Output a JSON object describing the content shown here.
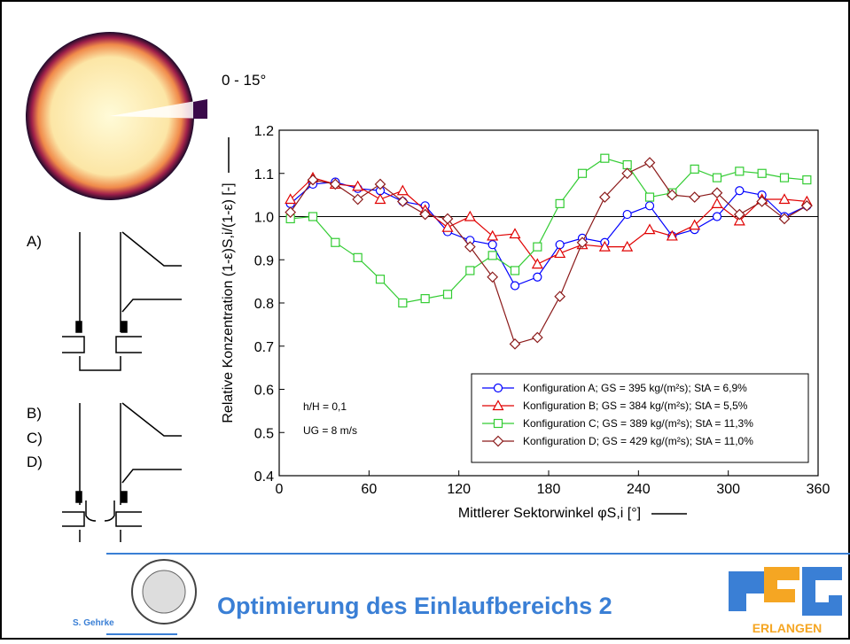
{
  "slide": {
    "title": "Optimierung des Einlaufbereichs 2",
    "author": "S. Gehrke",
    "sector_label": "0 - 15°",
    "labels": [
      "A)",
      "B)",
      "C)",
      "D)"
    ],
    "logo_text": "ERLANGEN"
  },
  "chart_data": {
    "type": "line",
    "y_label": "Relative Konzentration (1-ε)S,i/(1-ε) [-]",
    "x_label": "Mittlerer Sektorwinkel φS,i [°]",
    "annotations": [
      "h/H   = 0,1",
      "UG = 8 m/s"
    ],
    "x": [
      7.5,
      22.5,
      37.5,
      52.5,
      67.5,
      82.5,
      97.5,
      112.5,
      127.5,
      142.5,
      157.5,
      172.5,
      187.5,
      202.5,
      217.5,
      232.5,
      247.5,
      262.5,
      277.5,
      292.5,
      307.5,
      322.5,
      337.5,
      352.5
    ],
    "series": [
      {
        "name": "Konfiguration A; GS = 395 kg/(m²s); StA = 6,9%",
        "color": "#0000ff",
        "marker": "circle",
        "values": [
          1.03,
          1.075,
          1.08,
          1.065,
          1.06,
          1.035,
          1.025,
          0.965,
          0.945,
          0.935,
          0.84,
          0.86,
          0.935,
          0.95,
          0.94,
          1.005,
          1.025,
          0.955,
          0.97,
          1.0,
          1.06,
          1.05,
          1.0,
          1.025
        ]
      },
      {
        "name": "Konfiguration B; GS = 384 kg/(m²s); StA = 5,5%",
        "color": "#e00000",
        "marker": "triangle",
        "values": [
          1.04,
          1.09,
          1.075,
          1.07,
          1.04,
          1.06,
          1.015,
          0.975,
          1.0,
          0.955,
          0.96,
          0.89,
          0.915,
          0.935,
          0.93,
          0.93,
          0.97,
          0.955,
          0.98,
          1.03,
          0.99,
          1.04,
          1.04,
          1.035
        ]
      },
      {
        "name": "Konfiguration C; GS = 389 kg/(m²s); StA = 11,3%",
        "color": "#33cc33",
        "marker": "square",
        "values": [
          0.995,
          1.0,
          0.94,
          0.905,
          0.855,
          0.8,
          0.81,
          0.82,
          0.875,
          0.91,
          0.875,
          0.93,
          1.03,
          1.1,
          1.135,
          1.12,
          1.045,
          1.055,
          1.11,
          1.09,
          1.105,
          1.1,
          1.09,
          1.085
        ]
      },
      {
        "name": "Konfiguration D; GS = 429 kg/(m²s); StA = 11,0%",
        "color": "#8b1a1a",
        "marker": "diamond",
        "values": [
          1.01,
          1.085,
          1.075,
          1.04,
          1.075,
          1.035,
          1.005,
          0.995,
          0.93,
          0.86,
          0.705,
          0.72,
          0.815,
          0.94,
          1.045,
          1.1,
          1.125,
          1.05,
          1.045,
          1.055,
          1.005,
          1.035,
          0.995,
          1.025
        ]
      }
    ],
    "reference_line": 1.0,
    "xlim": [
      0,
      360
    ],
    "xticks": [
      0,
      60,
      120,
      180,
      240,
      300,
      360
    ],
    "ylim": [
      0.4,
      1.2
    ],
    "yticks": [
      0.4,
      0.5,
      0.6,
      0.7,
      0.8,
      0.9,
      {
        "value": 1.0,
        "label": "1.0"
      },
      1.1,
      1.2
    ],
    "legend": "lower-right"
  }
}
